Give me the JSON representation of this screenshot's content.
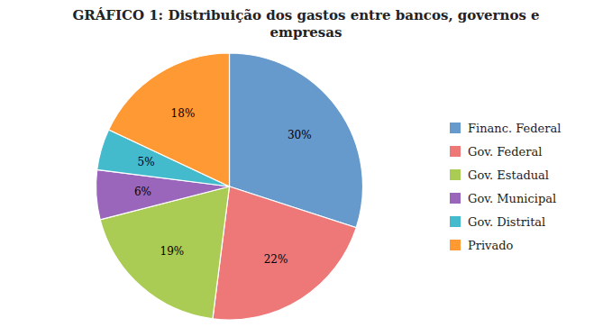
{
  "chart_data": {
    "type": "pie",
    "title": "GRÁFICO 1: Distribuição dos gastos entre bancos, governos e\nempresas",
    "categories": [
      "Financ. Federal",
      "Gov. Federal",
      "Gov. Estadual",
      "Gov. Municipal",
      "Gov. Distrital",
      "Privado"
    ],
    "values": [
      30,
      22,
      19,
      6,
      5,
      18
    ],
    "value_labels": [
      "30%",
      "22%",
      "19%",
      "6%",
      "5%",
      "18%"
    ],
    "colors": [
      "#6699CC",
      "#EE7777",
      "#AACC55",
      "#9966BB",
      "#44BBCC",
      "#FF9933"
    ],
    "data_labels": true,
    "legend": "right"
  }
}
